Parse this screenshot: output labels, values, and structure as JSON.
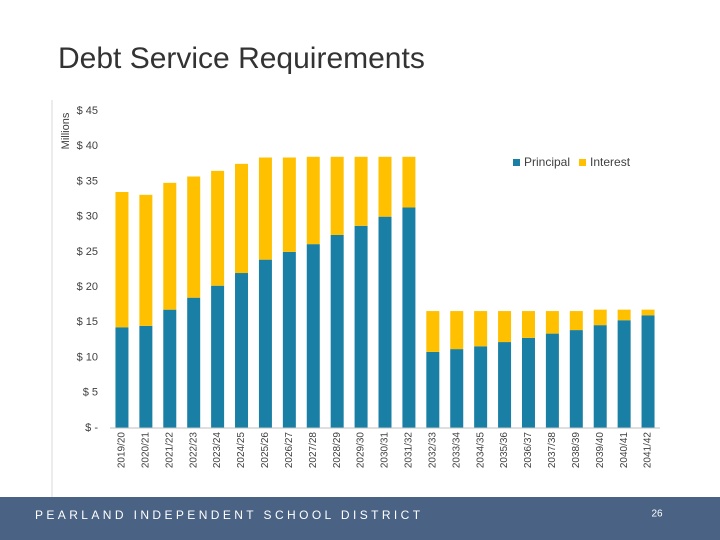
{
  "chart_data": {
    "type": "stacked-bar",
    "title": "Debt Service Requirements",
    "ylabel": "Millions",
    "categories": [
      "2019/20",
      "2020/21",
      "2021/22",
      "2022/23",
      "2023/24",
      "2024/25",
      "2025/26",
      "2026/27",
      "2027/28",
      "2028/29",
      "2029/30",
      "2030/31",
      "2031/32",
      "2032/33",
      "2033/34",
      "2034/35",
      "2035/36",
      "2036/37",
      "2037/38",
      "2038/39",
      "2039/40",
      "2040/41",
      "2041/42"
    ],
    "series": [
      {
        "name": "Principal",
        "color": "#1a7fa5",
        "values": [
          14.3,
          14.5,
          16.8,
          18.5,
          20.2,
          22.0,
          23.9,
          25.0,
          26.1,
          27.4,
          28.7,
          30.0,
          31.3,
          10.8,
          11.2,
          11.6,
          12.2,
          12.8,
          13.4,
          13.9,
          14.6,
          15.3,
          16.0
        ]
      },
      {
        "name": "Interest",
        "color": "#ffc000",
        "values": [
          19.2,
          18.6,
          18.0,
          17.2,
          16.3,
          15.5,
          14.5,
          13.4,
          12.4,
          11.1,
          9.8,
          8.5,
          7.2,
          5.8,
          5.4,
          5.0,
          4.4,
          3.8,
          3.2,
          2.7,
          2.2,
          1.5,
          0.8
        ]
      }
    ],
    "ylim": [
      0,
      45
    ],
    "yticks": [
      {
        "value": 0,
        "label": "$ -"
      },
      {
        "value": 5,
        "label": "$ 5"
      },
      {
        "value": 10,
        "label": "$ 10"
      },
      {
        "value": 15,
        "label": "$ 15"
      },
      {
        "value": 20,
        "label": "$ 20"
      },
      {
        "value": 25,
        "label": "$ 25"
      },
      {
        "value": 30,
        "label": "$ 30"
      },
      {
        "value": 35,
        "label": "$ 35"
      },
      {
        "value": 40,
        "label": "$ 40"
      },
      {
        "value": 45,
        "label": "$ 45"
      }
    ],
    "grid": false,
    "legend": "upper right"
  },
  "footer": "PEARLAND INDEPENDENT SCHOOL DISTRICT",
  "page_number": "26"
}
